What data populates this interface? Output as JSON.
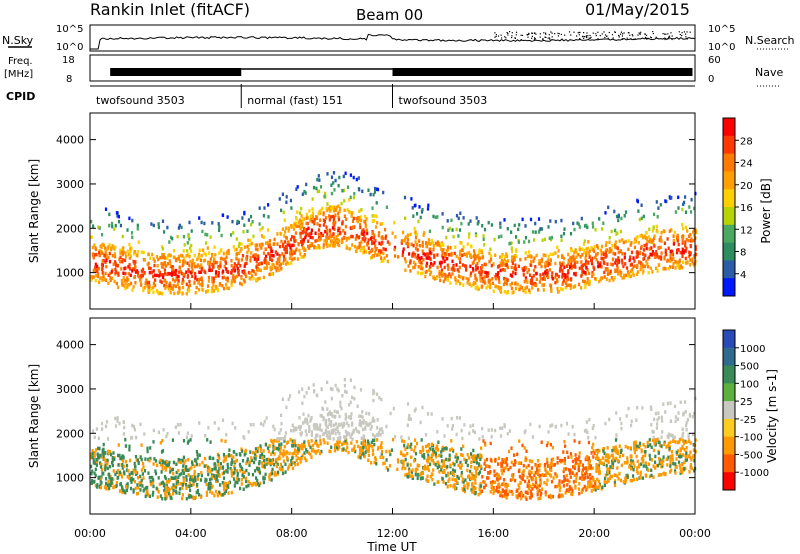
{
  "header": {
    "station": "Rankin Inlet (fitACF)",
    "beam": "Beam 00",
    "date": "01/May/2015"
  },
  "panels": {
    "nsky": {
      "left_label": "N.Sky",
      "right_label": "N.Search",
      "y_ticks": [
        "10^5",
        "10^0"
      ],
      "right_ticks": [
        "10^5",
        "10^0"
      ]
    },
    "freq": {
      "label_line1": "Freq.",
      "label_line2": "[MHz]",
      "y_ticks": [
        "18",
        "8"
      ],
      "right_label": "Nave",
      "right_ticks": [
        "60",
        "0"
      ]
    },
    "cpid": {
      "label": "CPID",
      "segments": [
        {
          "label": "twofsound 3503",
          "start_hour": 0,
          "end_hour": 6
        },
        {
          "label": "normal (fast) 151",
          "start_hour": 6,
          "end_hour": 12
        },
        {
          "label": "twofsound 3503",
          "start_hour": 12,
          "end_hour": 24
        }
      ]
    }
  },
  "colorbars": {
    "power": {
      "label": "Power [dB]",
      "ticks": [
        "28",
        "24",
        "20",
        "16",
        "12",
        "8",
        "4"
      ],
      "colors": [
        "#ff0000",
        "#ff3a00",
        "#ff7a00",
        "#ff9f00",
        "#ffd000",
        "#b8d400",
        "#4aa860",
        "#2c8d60",
        "#2c5ca8",
        "#0019ff"
      ]
    },
    "velocity": {
      "label": "Velocity [m s-1]",
      "ticks": [
        "1000",
        "500",
        "100",
        "25",
        "-25",
        "-100",
        "-500",
        "-1000"
      ],
      "colors": [
        "#2a4ab8",
        "#2e6b8c",
        "#3a8a58",
        "#5cb040",
        "#c8c8c0",
        "#ffcc22",
        "#ff9900",
        "#ff5a00",
        "#ff0000"
      ]
    }
  },
  "chart_data": {
    "type": "heatmap",
    "x_label": "Time UT",
    "x_ticks": [
      "00:00",
      "04:00",
      "08:00",
      "12:00",
      "16:00",
      "20:00",
      "00:00"
    ],
    "x_range_hours": [
      0,
      24
    ],
    "panels": [
      {
        "name": "Power",
        "ylabel": "Slant Range [km]",
        "ylim": [
          180,
          4600
        ],
        "y_ticks": [
          1000,
          2000,
          3000,
          4000
        ],
        "units": "dB",
        "clim": [
          0,
          30
        ]
      },
      {
        "name": "Velocity",
        "ylabel": "Slant Range [km]",
        "ylim": [
          180,
          4600
        ],
        "y_ticks": [
          1000,
          2000,
          3000,
          4000
        ],
        "units": "m s-1",
        "clim": [
          -1000,
          1000
        ]
      }
    ]
  }
}
